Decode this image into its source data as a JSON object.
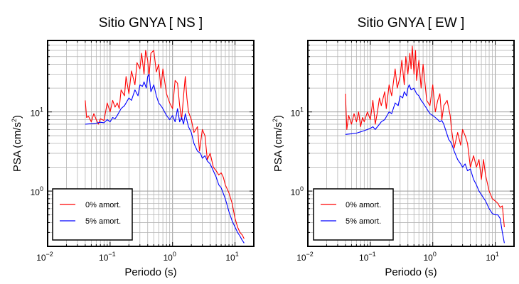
{
  "chart_data": [
    {
      "type": "line",
      "title": "Sitio GNYA [ NS ]",
      "xlabel": "Periodo (s)",
      "ylabel": "PSA (cm/s",
      "ylabel_sup": "2",
      "ylabel_tail": ")",
      "xscale": "log",
      "yscale": "log",
      "xlim": [
        0.01,
        20
      ],
      "ylim": [
        0.2,
        80
      ],
      "x_ticks": [
        {
          "base": "10",
          "exp": "−2"
        },
        {
          "base": "10",
          "exp": "−1"
        },
        {
          "base": "10",
          "exp": "0"
        },
        {
          "base": "10",
          "exp": "1"
        }
      ],
      "y_ticks": [
        {
          "base": "10",
          "exp": "0"
        },
        {
          "base": "10",
          "exp": "1"
        }
      ],
      "grid": true,
      "legend_position": "bottom-left",
      "series": [
        {
          "name": "0% amort.",
          "color": "#ff0000",
          "x": [
            0.04,
            0.042,
            0.045,
            0.05,
            0.055,
            0.06,
            0.065,
            0.07,
            0.08,
            0.09,
            0.1,
            0.11,
            0.12,
            0.13,
            0.14,
            0.15,
            0.17,
            0.18,
            0.2,
            0.22,
            0.25,
            0.27,
            0.3,
            0.32,
            0.35,
            0.37,
            0.4,
            0.42,
            0.45,
            0.5,
            0.55,
            0.6,
            0.65,
            0.7,
            0.8,
            0.9,
            1.0,
            1.1,
            1.2,
            1.3,
            1.4,
            1.5,
            1.6,
            1.7,
            1.8,
            2.0,
            2.2,
            2.5,
            2.7,
            3.0,
            3.3,
            3.6,
            4.0,
            4.5,
            5.0,
            5.5,
            6.0,
            6.5,
            7.0,
            8.0,
            9.0,
            10.0,
            11.0,
            12.0,
            13.0,
            14.0
          ],
          "y": [
            14,
            8.5,
            8.8,
            7.5,
            9.5,
            8.0,
            7.0,
            8.2,
            7.8,
            13,
            10,
            14,
            11.5,
            13,
            11,
            19,
            16,
            28,
            17,
            33,
            22,
            42,
            35,
            55,
            30,
            60,
            45,
            28,
            55,
            60,
            32,
            40,
            20,
            35,
            17,
            13,
            11,
            25,
            23,
            12,
            8,
            16,
            28,
            15,
            10,
            8,
            5.5,
            6.5,
            3.2,
            6,
            5,
            2.5,
            3,
            2,
            1.8,
            1.6,
            1.7,
            1.5,
            1.2,
            0.95,
            0.7,
            0.45,
            0.35,
            0.3,
            0.28,
            0.25
          ]
        },
        {
          "name": "5% amort.",
          "color": "#0000ff",
          "x": [
            0.04,
            0.05,
            0.06,
            0.07,
            0.08,
            0.09,
            0.1,
            0.11,
            0.12,
            0.13,
            0.15,
            0.17,
            0.2,
            0.22,
            0.25,
            0.28,
            0.3,
            0.33,
            0.35,
            0.38,
            0.4,
            0.42,
            0.45,
            0.5,
            0.55,
            0.6,
            0.65,
            0.7,
            0.8,
            0.9,
            1.0,
            1.1,
            1.2,
            1.3,
            1.4,
            1.5,
            1.6,
            1.8,
            2.0,
            2.2,
            2.5,
            2.8,
            3.0,
            3.3,
            3.6,
            4.0,
            4.5,
            5.0,
            5.5,
            6.0,
            7.0,
            8.0,
            9.0,
            10.0,
            11.0,
            12.0,
            13.0,
            14.0
          ],
          "y": [
            7.0,
            7.1,
            7.2,
            7.4,
            7.3,
            8.0,
            7.5,
            8.5,
            8.2,
            9,
            11,
            12,
            15,
            14,
            19,
            16,
            22,
            21,
            24,
            20,
            28,
            30,
            18,
            22,
            16,
            13,
            12,
            11,
            9,
            8,
            9,
            7.5,
            11,
            7.5,
            8.5,
            7.0,
            9.5,
            6.5,
            5.5,
            4,
            3.2,
            3.0,
            2.6,
            2.8,
            2.4,
            2.2,
            1.8,
            1.5,
            1.2,
            1.1,
            0.8,
            0.55,
            0.42,
            0.35,
            0.3,
            0.27,
            0.24,
            0.22
          ]
        }
      ]
    },
    {
      "type": "line",
      "title": "Sitio GNYA [ EW ]",
      "xlabel": "Periodo (s)",
      "ylabel": "PSA (cm/s",
      "ylabel_sup": "2",
      "ylabel_tail": ")",
      "xscale": "log",
      "yscale": "log",
      "xlim": [
        0.01,
        20
      ],
      "ylim": [
        0.2,
        80
      ],
      "x_ticks": [
        {
          "base": "10",
          "exp": "−2"
        },
        {
          "base": "10",
          "exp": "−1"
        },
        {
          "base": "10",
          "exp": "0"
        },
        {
          "base": "10",
          "exp": "1"
        }
      ],
      "y_ticks": [
        {
          "base": "10",
          "exp": "0"
        },
        {
          "base": "10",
          "exp": "1"
        }
      ],
      "grid": true,
      "legend_position": "bottom-left",
      "series": [
        {
          "name": "0% amort.",
          "color": "#ff0000",
          "x": [
            0.04,
            0.042,
            0.045,
            0.05,
            0.055,
            0.06,
            0.065,
            0.07,
            0.075,
            0.08,
            0.09,
            0.1,
            0.11,
            0.12,
            0.13,
            0.14,
            0.15,
            0.17,
            0.18,
            0.2,
            0.22,
            0.25,
            0.27,
            0.3,
            0.32,
            0.35,
            0.37,
            0.4,
            0.43,
            0.45,
            0.47,
            0.5,
            0.53,
            0.55,
            0.6,
            0.65,
            0.7,
            0.8,
            0.9,
            1.0,
            1.1,
            1.2,
            1.3,
            1.4,
            1.5,
            1.7,
            1.9,
            2.0,
            2.2,
            2.5,
            2.8,
            3.0,
            3.3,
            3.6,
            4.0,
            4.5,
            5.0,
            5.5,
            6.0,
            6.5,
            7.0,
            8.0,
            9.0,
            10.0,
            11.0,
            12.0,
            13.0,
            14.0
          ],
          "y": [
            17,
            6,
            9,
            7,
            9.5,
            7.5,
            10,
            6.5,
            8.5,
            7.5,
            10,
            8,
            14,
            7,
            10,
            15,
            12,
            18,
            11,
            22,
            16,
            35,
            20,
            28,
            45,
            22,
            50,
            30,
            55,
            35,
            68,
            30,
            60,
            25,
            45,
            20,
            40,
            14,
            12,
            22,
            10,
            14,
            17,
            8,
            12,
            14,
            9,
            6,
            3.5,
            5.5,
            3.8,
            6,
            5.0,
            4,
            2,
            2.8,
            2.0,
            2.5,
            1.4,
            2.5,
            1.6,
            1.0,
            0.8,
            0.75,
            0.7,
            0.62,
            0.65,
            0.35
          ]
        },
        {
          "name": "5% amort.",
          "color": "#0000ff",
          "x": [
            0.04,
            0.05,
            0.06,
            0.07,
            0.08,
            0.09,
            0.1,
            0.11,
            0.12,
            0.13,
            0.15,
            0.17,
            0.2,
            0.22,
            0.25,
            0.28,
            0.3,
            0.33,
            0.35,
            0.38,
            0.4,
            0.42,
            0.45,
            0.5,
            0.55,
            0.6,
            0.65,
            0.7,
            0.8,
            0.9,
            1.0,
            1.1,
            1.2,
            1.3,
            1.4,
            1.5,
            1.6,
            1.8,
            2.0,
            2.2,
            2.5,
            2.8,
            3.0,
            3.3,
            3.6,
            4.0,
            4.5,
            5.0,
            5.5,
            6.0,
            7.0,
            8.0,
            9.0,
            10.0,
            11.0,
            12.0,
            13.0,
            14.0
          ],
          "y": [
            5.2,
            5.3,
            5.4,
            5.6,
            5.8,
            6,
            6.2,
            6.5,
            6.0,
            6.5,
            7.5,
            8,
            10,
            9.5,
            13,
            12,
            16,
            15,
            18,
            16,
            20,
            22,
            19,
            20,
            17,
            16,
            14,
            13,
            11,
            9.5,
            9.0,
            8.5,
            8.0,
            7.5,
            7.8,
            7.0,
            6.0,
            4.5,
            4.0,
            3.2,
            2.5,
            2.2,
            2.0,
            2.2,
            1.8,
            1.9,
            1.4,
            1.2,
            1.0,
            0.9,
            0.75,
            0.6,
            0.52,
            0.5,
            0.5,
            0.45,
            0.3,
            0.22
          ]
        }
      ]
    }
  ]
}
